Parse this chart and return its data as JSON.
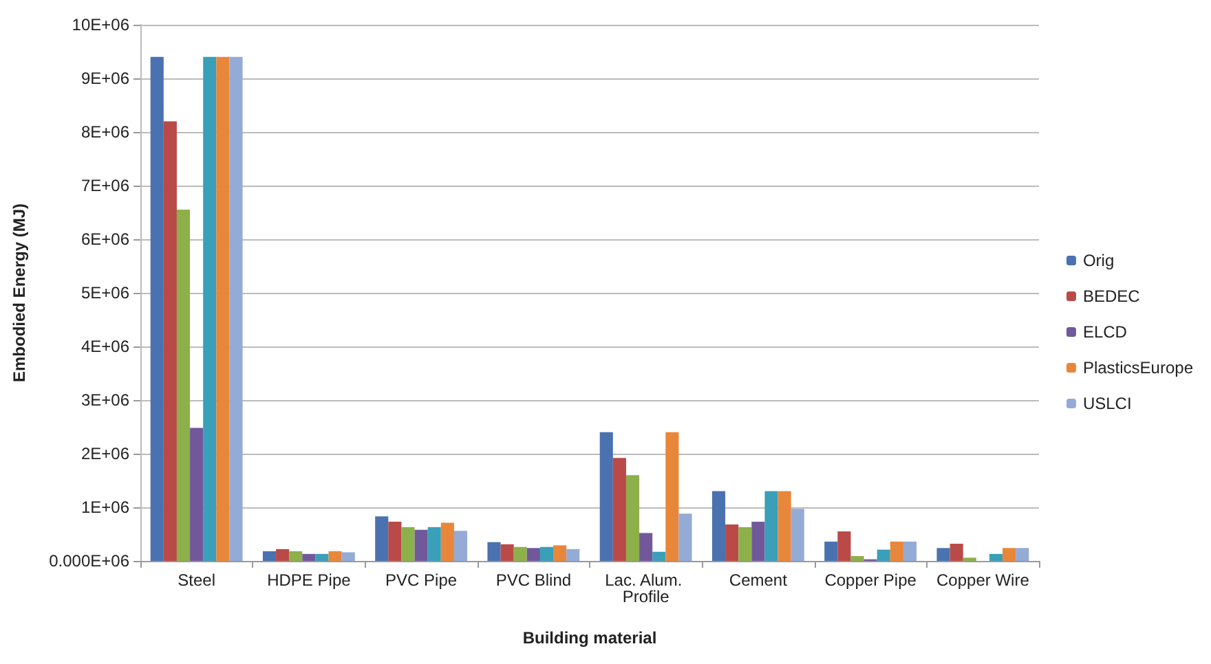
{
  "chart_data": {
    "type": "bar",
    "xlabel": "Building material",
    "ylabel": "Embodied Energy (MJ)",
    "categories": [
      "Steel",
      "HDPE Pipe",
      "PVC Pipe",
      "PVC Blind",
      "Lac. Alum. Profile",
      "Cement",
      "Copper Pipe",
      "Copper Wire"
    ],
    "series": [
      {
        "name": "Orig",
        "color": "#4a72b0",
        "values": [
          9400000,
          180000,
          830000,
          350000,
          2400000,
          1300000,
          360000,
          240000
        ]
      },
      {
        "name": "BEDEC",
        "color": "#b94a48",
        "values": [
          8200000,
          220000,
          730000,
          310000,
          1920000,
          680000,
          550000,
          320000
        ]
      },
      {
        "color": "#8db04a",
        "values": [
          6550000,
          180000,
          630000,
          260000,
          1600000,
          630000,
          90000,
          60000
        ]
      },
      {
        "name": "ELCD",
        "color": "#71589a",
        "values": [
          2480000,
          130000,
          580000,
          240000,
          520000,
          730000,
          30000,
          null
        ]
      },
      {
        "color": "#3a9fb8",
        "values": [
          9400000,
          130000,
          630000,
          260000,
          170000,
          1300000,
          210000,
          130000
        ]
      },
      {
        "name": "PlasticsEurope",
        "color": "#e8873a",
        "values": [
          9400000,
          180000,
          710000,
          290000,
          2400000,
          1300000,
          360000,
          240000
        ]
      },
      {
        "name": "USLCI",
        "color": "#94abd6",
        "values": [
          9400000,
          160000,
          560000,
          220000,
          880000,
          970000,
          360000,
          240000
        ]
      }
    ],
    "ylim": [
      0,
      10000000
    ],
    "yticks": [
      {
        "value": 0,
        "label": "0.000E+06"
      },
      {
        "value": 1000000,
        "label": "1E+06"
      },
      {
        "value": 2000000,
        "label": "2E+06"
      },
      {
        "value": 3000000,
        "label": "3E+06"
      },
      {
        "value": 4000000,
        "label": "4E+06"
      },
      {
        "value": 5000000,
        "label": "5E+06"
      },
      {
        "value": 6000000,
        "label": "6E+06"
      },
      {
        "value": 7000000,
        "label": "7E+06"
      },
      {
        "value": 8000000,
        "label": "8E+06"
      },
      {
        "value": 9000000,
        "label": "9E+06"
      },
      {
        "value": 10000000,
        "label": "10E+06"
      }
    ],
    "grid": "y",
    "legend": "right"
  }
}
